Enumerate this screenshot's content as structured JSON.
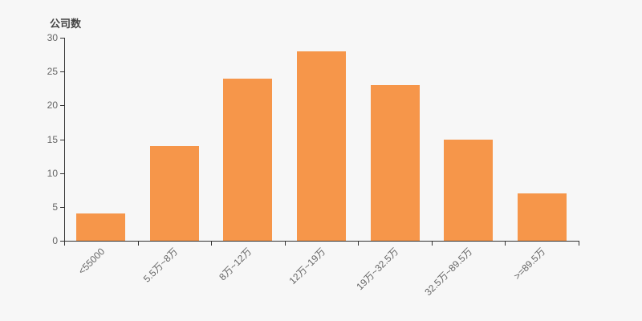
{
  "chart": {
    "background_color": "#f7f7f7",
    "bar_color": "#f6964a",
    "axis_color": "#333333",
    "tick_label_color": "#666666",
    "title_color": "#444444"
  },
  "chart_data": {
    "type": "bar",
    "title": "公司数",
    "ylabel": "公司数",
    "xlabel": "",
    "categories": [
      "<55000",
      "5.5万~8万",
      "8万~12万",
      "12万~19万",
      "19万~32.5万",
      "32.5万~89.5万",
      ">=89.5万"
    ],
    "values": [
      4,
      14,
      24,
      28,
      23,
      15,
      7
    ],
    "ylim": [
      0,
      30
    ],
    "ytick_step": 5,
    "yticks": [
      0,
      5,
      10,
      15,
      20,
      25,
      30
    ],
    "grid": false,
    "legend": false,
    "x_label_rotation": 45
  }
}
